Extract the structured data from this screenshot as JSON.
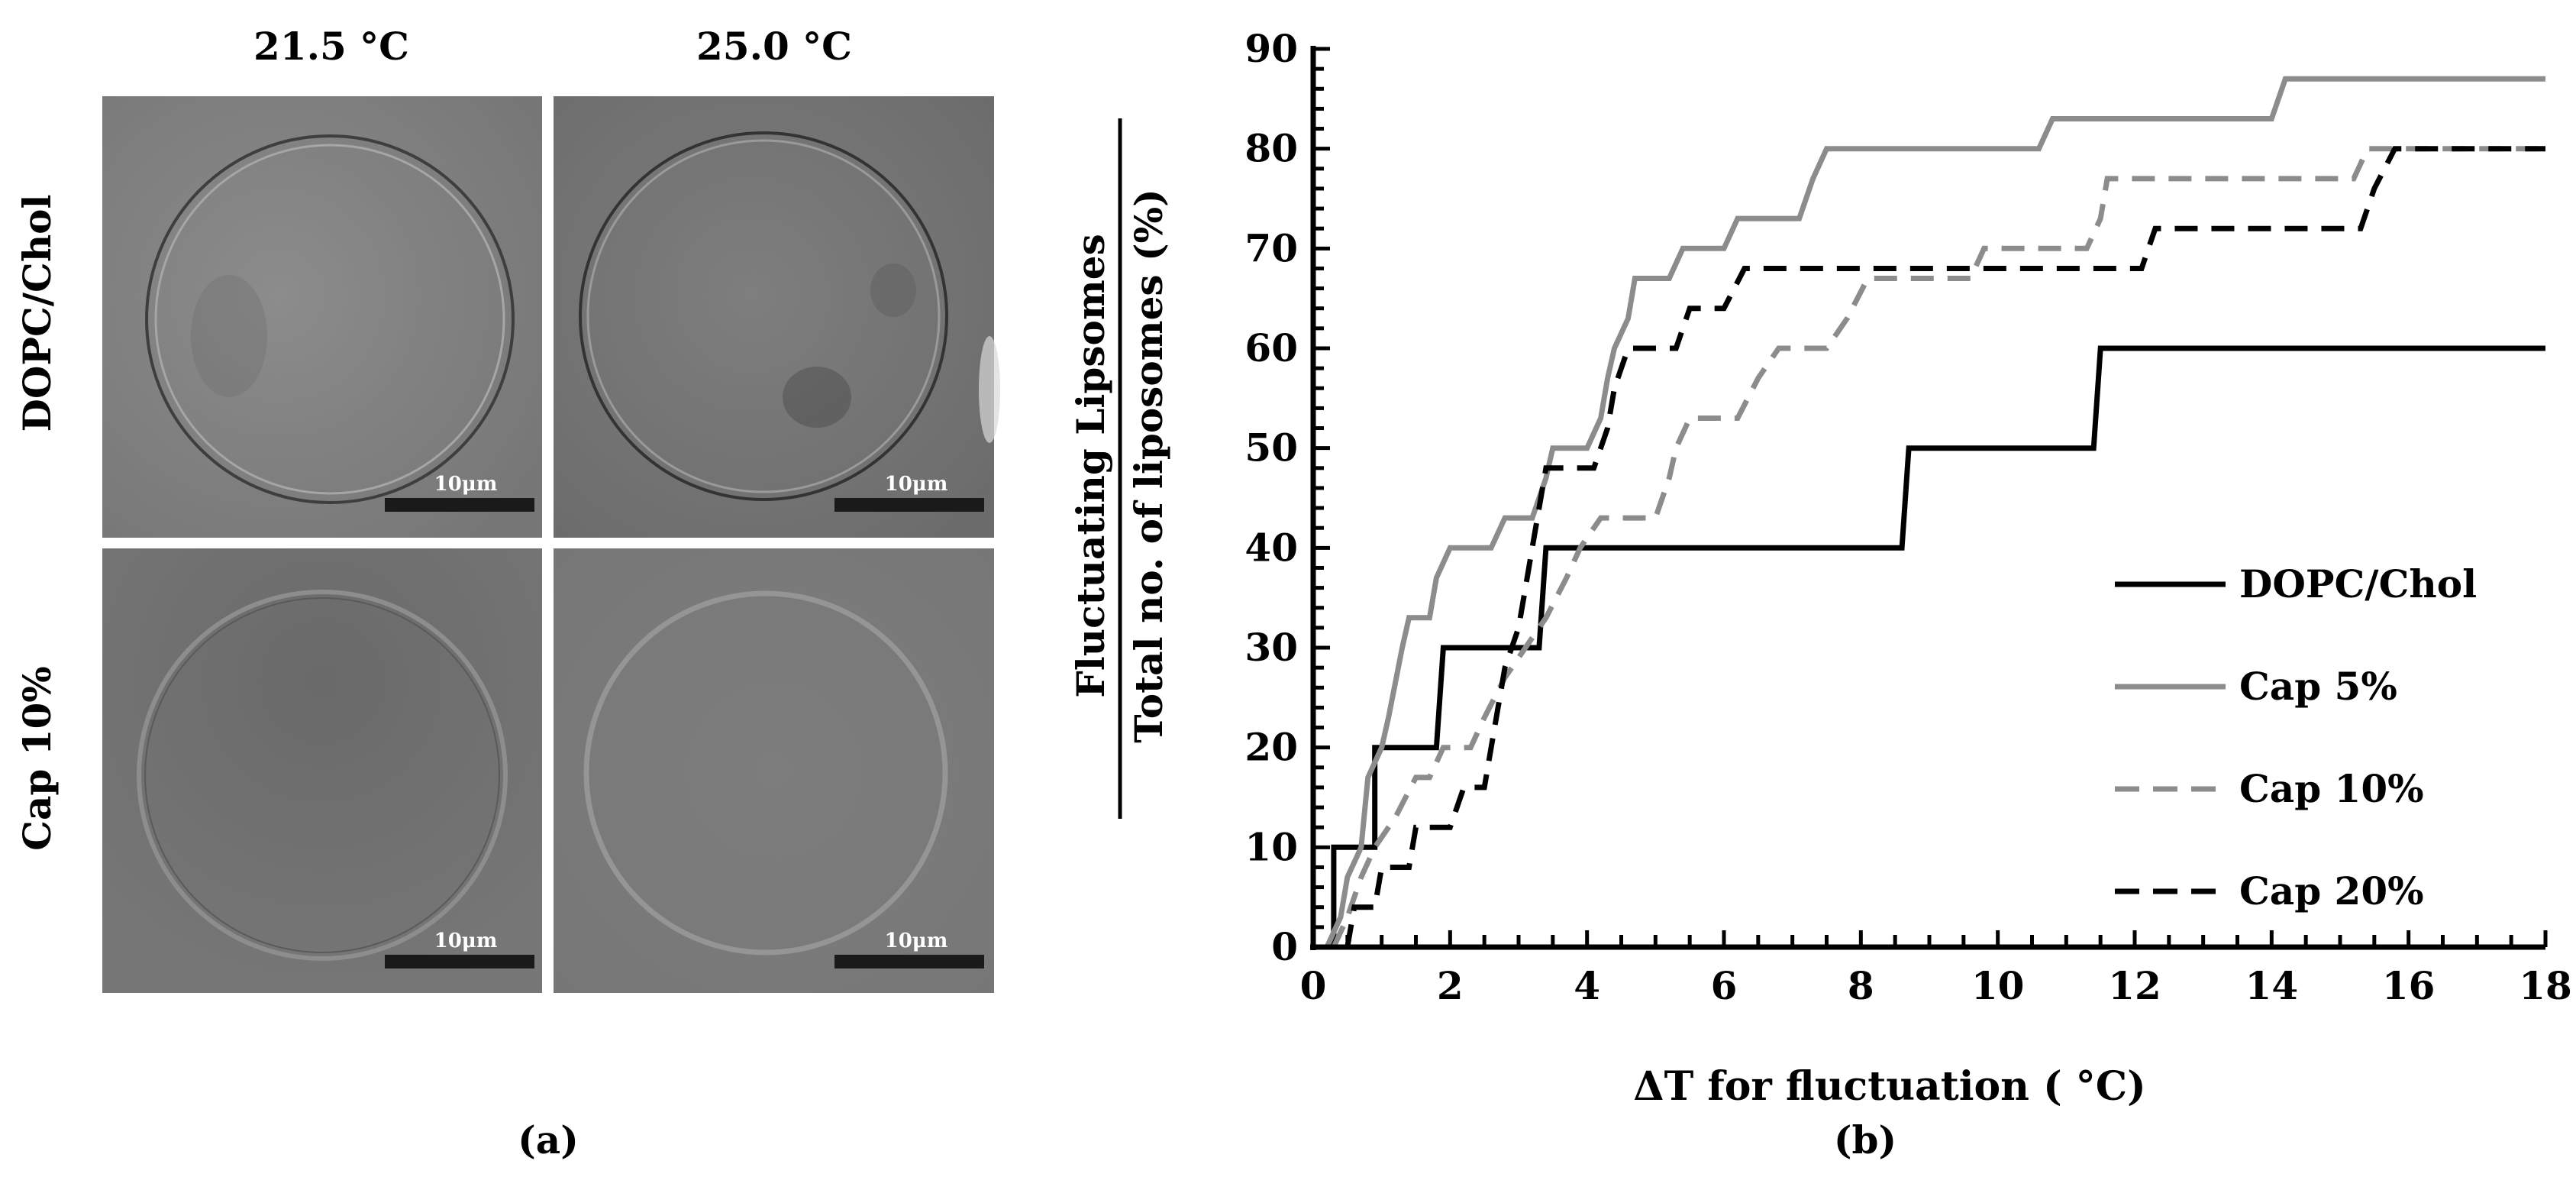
{
  "panel_a": {
    "caption": "(a)",
    "col_headers": [
      "21.5 °C",
      "25.0 °C"
    ],
    "row_headers": [
      "DOPC/Chol",
      "Cap 10%"
    ],
    "scale_bar_label": "10μm"
  },
  "panel_b": {
    "caption": "(b)"
  },
  "chart_data": {
    "type": "line",
    "title": "",
    "xlabel": "ΔT for fluctuation ( °C)",
    "ylabel_numerator": "Fluctuating Lipsomes",
    "ylabel_denominator": "Total no. of liposomes (%)",
    "xlim": [
      0,
      18
    ],
    "ylim": [
      0,
      90
    ],
    "x_ticks": [
      0,
      2,
      4,
      6,
      8,
      10,
      12,
      14,
      16,
      18
    ],
    "y_ticks": [
      0,
      10,
      20,
      30,
      40,
      50,
      60,
      70,
      80,
      90
    ],
    "grid": false,
    "legend_position": "right",
    "series": [
      {
        "name": "DOPC/Chol",
        "color": "#000000",
        "dash": "solid",
        "points": [
          [
            0.1,
            0
          ],
          [
            0.3,
            0
          ],
          [
            0.3,
            10
          ],
          [
            0.9,
            10
          ],
          [
            0.9,
            20
          ],
          [
            1.8,
            20
          ],
          [
            1.9,
            30
          ],
          [
            3.3,
            30
          ],
          [
            3.4,
            40
          ],
          [
            8.6,
            40
          ],
          [
            8.7,
            50
          ],
          [
            11.4,
            50
          ],
          [
            11.5,
            60
          ],
          [
            18,
            60
          ]
        ]
      },
      {
        "name": "Cap 5%",
        "color": "#8c8c8c",
        "dash": "solid",
        "points": [
          [
            0.2,
            0
          ],
          [
            0.4,
            3
          ],
          [
            0.5,
            7
          ],
          [
            0.7,
            10
          ],
          [
            0.8,
            17
          ],
          [
            1.0,
            20
          ],
          [
            1.1,
            23
          ],
          [
            1.3,
            30
          ],
          [
            1.4,
            33
          ],
          [
            1.7,
            33
          ],
          [
            1.8,
            37
          ],
          [
            2.0,
            40
          ],
          [
            2.6,
            40
          ],
          [
            2.8,
            43
          ],
          [
            3.2,
            43
          ],
          [
            3.4,
            47
          ],
          [
            3.5,
            50
          ],
          [
            4.0,
            50
          ],
          [
            4.2,
            53
          ],
          [
            4.3,
            57
          ],
          [
            4.4,
            60
          ],
          [
            4.6,
            63
          ],
          [
            4.7,
            67
          ],
          [
            5.2,
            67
          ],
          [
            5.4,
            70
          ],
          [
            6.0,
            70
          ],
          [
            6.2,
            73
          ],
          [
            7.1,
            73
          ],
          [
            7.3,
            77
          ],
          [
            7.5,
            80
          ],
          [
            10.6,
            80
          ],
          [
            10.8,
            83
          ],
          [
            14.0,
            83
          ],
          [
            14.2,
            87
          ],
          [
            18,
            87
          ]
        ]
      },
      {
        "name": "Cap 10%",
        "color": "#8c8c8c",
        "dash": "dashed",
        "points": [
          [
            0.3,
            0
          ],
          [
            0.5,
            3
          ],
          [
            0.7,
            7
          ],
          [
            0.9,
            10
          ],
          [
            1.2,
            13
          ],
          [
            1.5,
            17
          ],
          [
            1.7,
            17
          ],
          [
            1.9,
            20
          ],
          [
            2.3,
            20
          ],
          [
            2.5,
            23
          ],
          [
            2.8,
            27
          ],
          [
            3.1,
            30
          ],
          [
            3.4,
            33
          ],
          [
            3.7,
            37
          ],
          [
            3.9,
            40
          ],
          [
            4.2,
            43
          ],
          [
            5.0,
            43
          ],
          [
            5.2,
            47
          ],
          [
            5.3,
            50
          ],
          [
            5.5,
            53
          ],
          [
            6.2,
            53
          ],
          [
            6.5,
            57
          ],
          [
            6.8,
            60
          ],
          [
            7.5,
            60
          ],
          [
            7.8,
            63
          ],
          [
            8.1,
            67
          ],
          [
            9.6,
            67
          ],
          [
            9.8,
            70
          ],
          [
            11.3,
            70
          ],
          [
            11.5,
            73
          ],
          [
            11.6,
            77
          ],
          [
            15.2,
            77
          ],
          [
            15.4,
            80
          ],
          [
            18,
            80
          ]
        ]
      },
      {
        "name": "Cap 20%",
        "color": "#000000",
        "dash": "dashed",
        "points": [
          [
            0.5,
            0
          ],
          [
            0.6,
            4
          ],
          [
            0.9,
            4
          ],
          [
            1.0,
            8
          ],
          [
            1.4,
            8
          ],
          [
            1.5,
            12
          ],
          [
            2.0,
            12
          ],
          [
            2.2,
            16
          ],
          [
            2.5,
            16
          ],
          [
            2.6,
            20
          ],
          [
            2.7,
            24
          ],
          [
            2.8,
            28
          ],
          [
            3.0,
            32
          ],
          [
            3.1,
            36
          ],
          [
            3.2,
            40
          ],
          [
            3.3,
            44
          ],
          [
            3.4,
            48
          ],
          [
            4.1,
            48
          ],
          [
            4.3,
            52
          ],
          [
            4.4,
            56
          ],
          [
            4.6,
            60
          ],
          [
            5.3,
            60
          ],
          [
            5.5,
            64
          ],
          [
            6.0,
            64
          ],
          [
            6.3,
            68
          ],
          [
            12.1,
            68
          ],
          [
            12.3,
            72
          ],
          [
            15.3,
            72
          ],
          [
            15.5,
            76
          ],
          [
            15.8,
            80
          ],
          [
            18,
            80
          ]
        ]
      }
    ]
  }
}
